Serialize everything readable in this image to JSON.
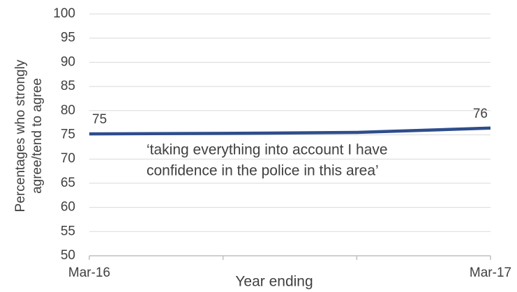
{
  "chart_data": {
    "type": "line",
    "categories": [
      "Mar-16",
      null,
      null,
      "Mar-17"
    ],
    "series": [
      {
        "name": null,
        "color": "#2e4d8c",
        "values": [
          75.2,
          75.3,
          75.5,
          76.4
        ],
        "value_labels": [
          "75",
          null,
          null,
          "76"
        ]
      }
    ],
    "ylim": [
      50,
      100
    ],
    "yticks": [
      50,
      55,
      60,
      65,
      70,
      75,
      80,
      85,
      90,
      95,
      100
    ],
    "grid": true,
    "y_label": [
      "Percentages who strongly",
      "agree/tend to agree"
    ],
    "x_label": "Year ending",
    "annotation": [
      "‘taking everything into account I have",
      "confidence in the police in this area’"
    ]
  }
}
